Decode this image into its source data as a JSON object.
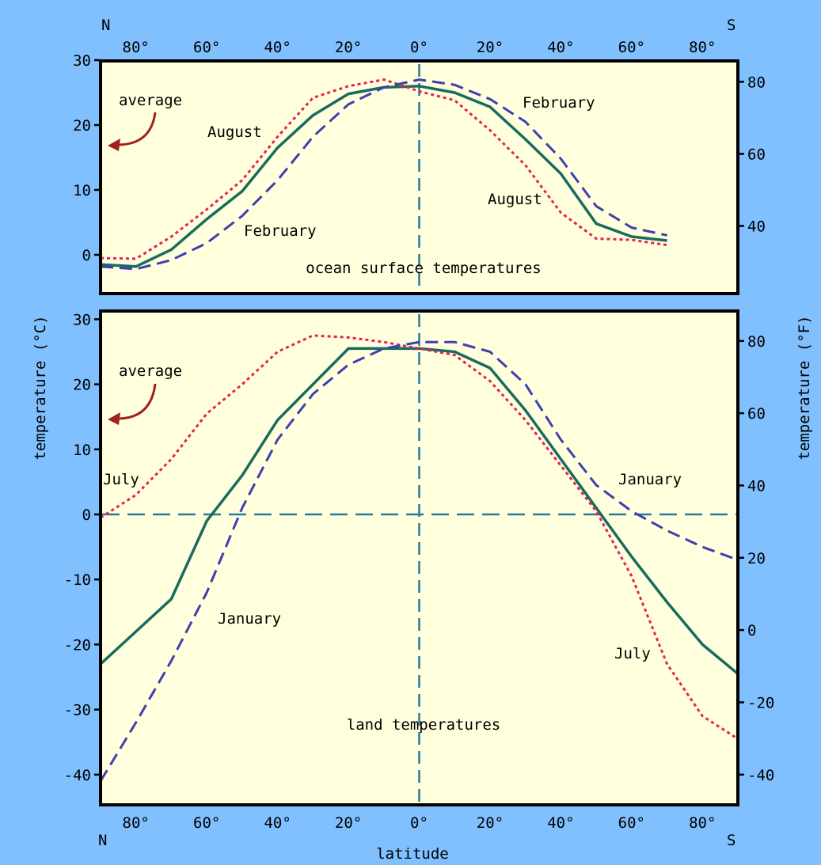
{
  "colors": {
    "background": "#80c0ff",
    "plot_bg": "#ffffdd",
    "frame": "#000000",
    "average": "#1a6b5e",
    "red_dotted": "#e8205a",
    "blue_dashed": "#3f3fb0",
    "reference_line": "#2a7a9a",
    "arrow": "#a0201e"
  },
  "labels": {
    "top_left_pole": "N",
    "top_right_pole": "S",
    "bottom_left_pole": "N",
    "bottom_right_pole": "S",
    "xlabel": "latitude",
    "ylabel_left": "temperature (°C)",
    "ylabel_right": "temperature (°F)"
  },
  "x_ticks": [
    "80°",
    "60°",
    "40°",
    "20°",
    "0°",
    "20°",
    "40°",
    "60°",
    "80°"
  ],
  "chart_data": [
    {
      "type": "line",
      "title": "ocean surface temperatures",
      "x_note": "latitude, negative = north, positive = south",
      "xlim": [
        -90,
        90
      ],
      "ylim": [
        -5,
        30
      ],
      "yticks_c": [
        "30",
        "20",
        "10",
        "0"
      ],
      "yticks_f": [
        "80",
        "60",
        "40"
      ],
      "annotations": {
        "average": "average",
        "red": "August",
        "blue": "February",
        "red_south": "August",
        "blue_south": "February"
      },
      "series": [
        {
          "name": "average",
          "style": "solid",
          "x": [
            -90,
            -80,
            -70,
            -60,
            -50,
            -40,
            -30,
            -20,
            -10,
            0,
            10,
            20,
            30,
            40,
            50,
            60,
            70
          ],
          "y": [
            -1.5,
            -1.8,
            0.8,
            5.5,
            9.8,
            16.5,
            21.5,
            24.8,
            25.8,
            26,
            25,
            22.8,
            17.8,
            12.5,
            4.8,
            2.8,
            2.2
          ]
        },
        {
          "name": "August",
          "style": "dotted",
          "x": [
            -90,
            -80,
            -70,
            -60,
            -50,
            -40,
            -30,
            -20,
            -10,
            0,
            10,
            20,
            30,
            40,
            50,
            60,
            70
          ],
          "y": [
            -0.5,
            -0.6,
            2.8,
            7,
            11.5,
            18.2,
            24.2,
            26,
            27,
            25.2,
            23.8,
            19.2,
            13.8,
            6.5,
            2.5,
            2.3,
            1.5
          ]
        },
        {
          "name": "February",
          "style": "dashed",
          "x": [
            -90,
            -80,
            -70,
            -60,
            -50,
            -40,
            -30,
            -20,
            -10,
            0,
            10,
            20,
            30,
            40,
            50,
            60,
            70
          ],
          "y": [
            -1.8,
            -2.2,
            -0.8,
            1.8,
            6,
            11.5,
            18.2,
            23.2,
            25.8,
            27,
            26.2,
            24,
            20.5,
            14.8,
            7.5,
            4.2,
            3
          ]
        }
      ]
    },
    {
      "type": "line",
      "title": "land temperatures",
      "x_note": "latitude, negative = north, positive = south",
      "xlim": [
        -90,
        90
      ],
      "ylim": [
        -45,
        32
      ],
      "yticks_c": [
        "30",
        "20",
        "10",
        "0",
        "-10",
        "-20",
        "-30",
        "-40"
      ],
      "yticks_f": [
        "80",
        "60",
        "40",
        "20",
        "0",
        "-20",
        "-40"
      ],
      "annotations": {
        "average": "average",
        "red": "July",
        "blue": "January",
        "blue_south": "January",
        "red_south": "July"
      },
      "series": [
        {
          "name": "average",
          "style": "solid",
          "x": [
            -90,
            -80,
            -70,
            -60,
            -50,
            -40,
            -30,
            -20,
            -10,
            0,
            10,
            20,
            30,
            40,
            50,
            60,
            70,
            80,
            90
          ],
          "y": [
            -23,
            -18,
            -13,
            -1,
            6,
            14.5,
            20,
            25.5,
            25.5,
            25.5,
            25,
            22.5,
            16,
            8.5,
            1,
            -6.5,
            -13.5,
            -20,
            -24.5
          ]
        },
        {
          "name": "July",
          "style": "dotted",
          "x": [
            -90,
            -80,
            -70,
            -60,
            -50,
            -40,
            -30,
            -20,
            -10,
            0,
            10,
            20,
            30,
            40,
            50,
            60,
            70,
            80,
            90
          ],
          "y": [
            -0.5,
            3,
            8.5,
            15.5,
            20,
            25,
            27.5,
            27.2,
            26.5,
            25.5,
            24.5,
            20.5,
            14.5,
            7.5,
            0.5,
            -9.5,
            -23,
            -31,
            -34.5
          ]
        },
        {
          "name": "January",
          "style": "dashed",
          "x": [
            -90,
            -80,
            -70,
            -60,
            -50,
            -40,
            -30,
            -20,
            -10,
            0,
            10,
            20,
            30,
            40,
            50,
            60,
            70,
            80,
            90
          ],
          "y": [
            -41,
            -32,
            -22.5,
            -12,
            1,
            11.5,
            18.5,
            23,
            25.5,
            26.5,
            26.5,
            25,
            20,
            11.5,
            4.5,
            0.5,
            -2.5,
            -5,
            -7
          ]
        }
      ]
    }
  ]
}
